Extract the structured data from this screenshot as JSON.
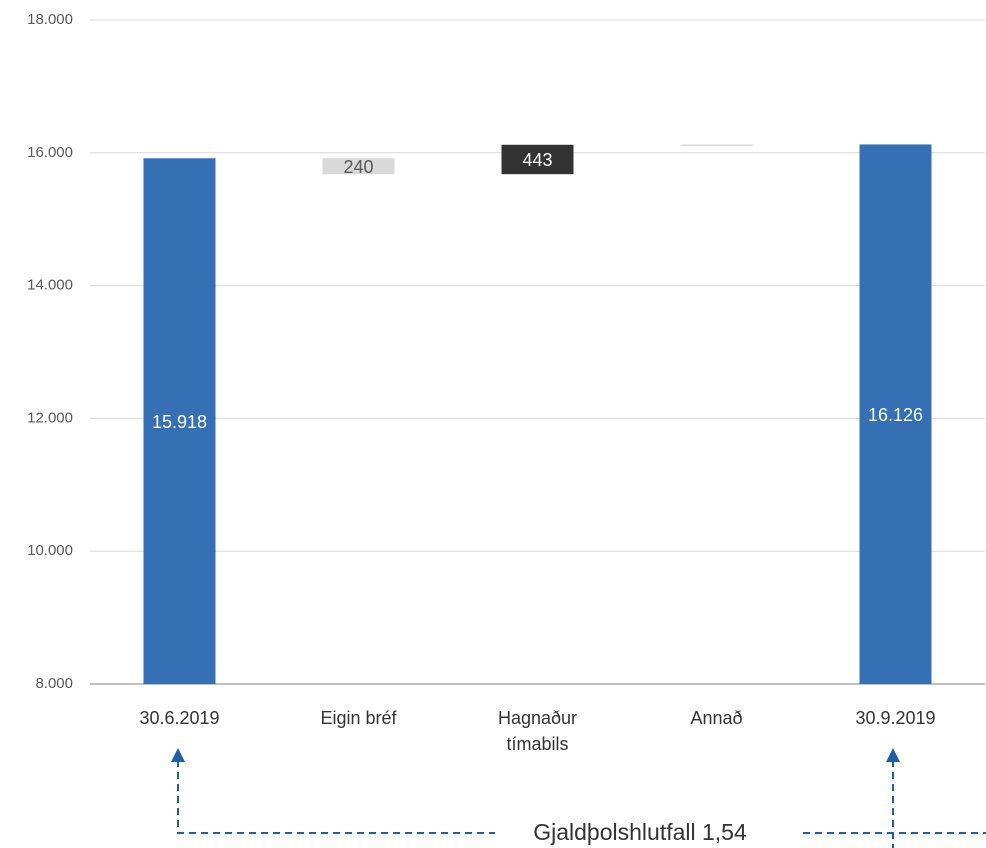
{
  "chart_data": {
    "type": "waterfall",
    "categories": [
      "30.6.2019",
      "Eigin bréf",
      "Hagnaður tímabils",
      "Annað",
      "30.9.2019"
    ],
    "values": [
      15918,
      -240,
      443,
      5,
      16126
    ],
    "value_labels": [
      "15.918",
      "240",
      "443",
      null,
      "16.126"
    ],
    "colors": [
      "#3570b4",
      "#d9d9d9",
      "#333333",
      "#d9d9d9",
      "#3570b4"
    ],
    "ylim": [
      8000,
      18000
    ],
    "yticks": [
      {
        "value": 8000,
        "label": "8.000"
      },
      {
        "value": 10000,
        "label": "10.000"
      },
      {
        "value": 12000,
        "label": "12.000"
      },
      {
        "value": 14000,
        "label": "14.000"
      },
      {
        "value": 16000,
        "label": "16.000"
      },
      {
        "value": 18000,
        "label": "18.000"
      }
    ],
    "grid": true,
    "annotation": "Gjaldþolshlutfall 1,54"
  }
}
